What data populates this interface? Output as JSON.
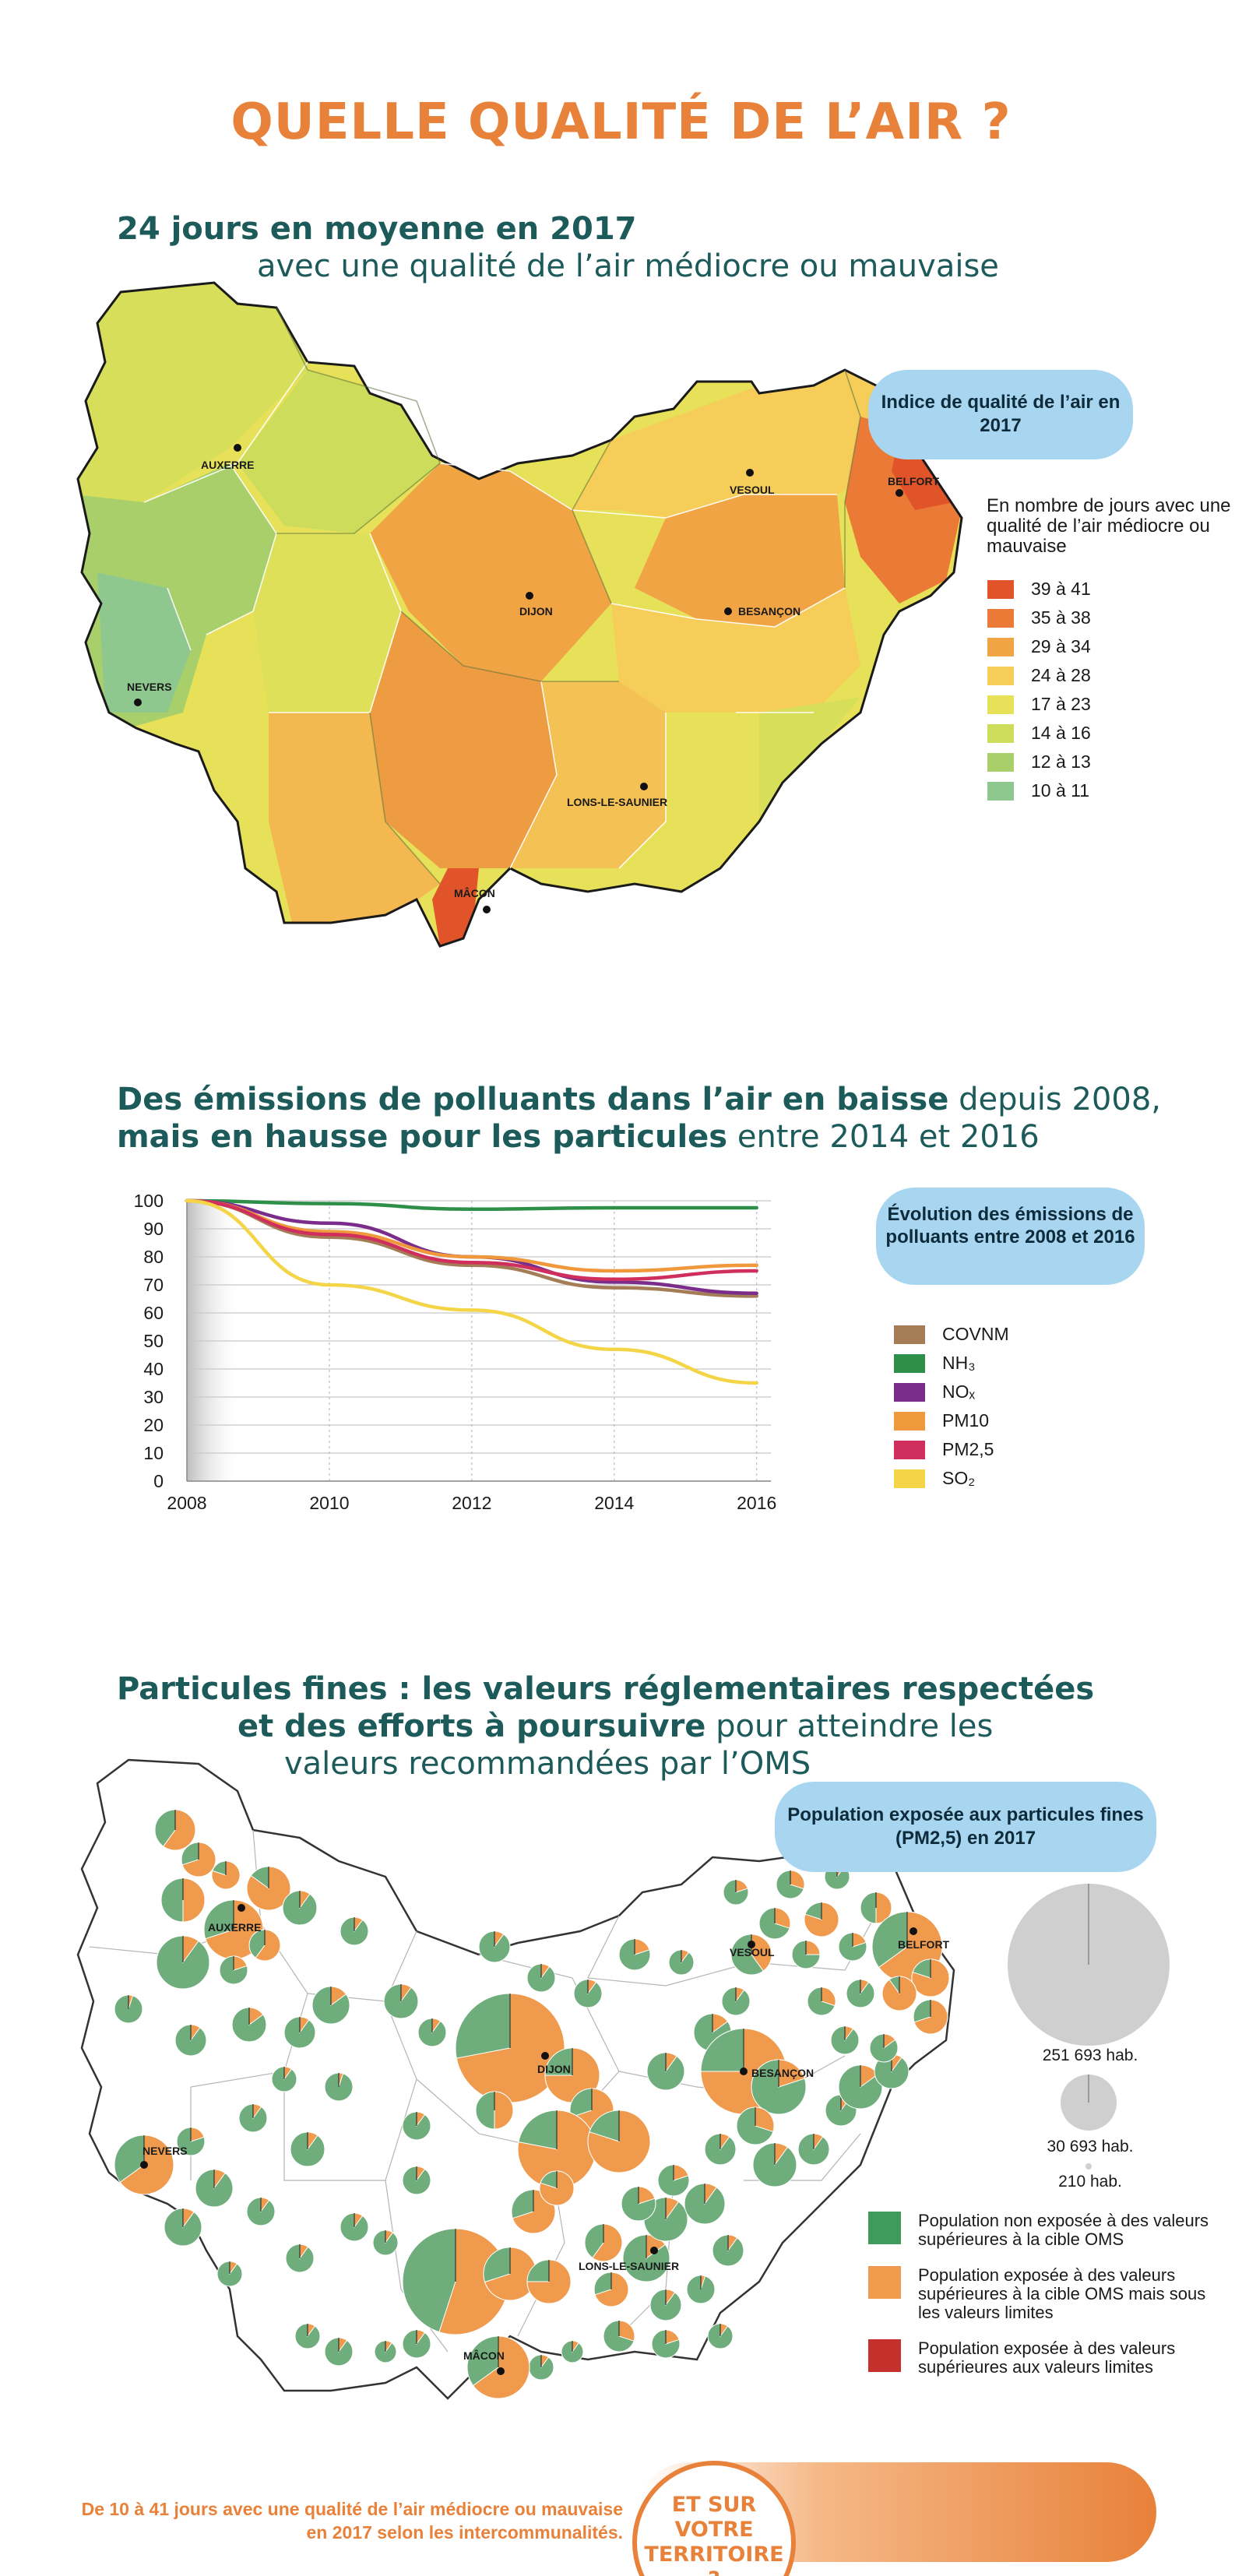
{
  "page": {
    "title": "QUELLE QUALITÉ DE L’AIR ?"
  },
  "section1": {
    "title_bold": "24 jours en moyenne en 2017",
    "title_light": "avec une qualité de l’air médiocre ou mauvaise",
    "bubble": "Indice de qualité de l’air en 2017",
    "legend_note": "En nombre de jours avec une qualité de l’air médiocre ou mauvaise",
    "legend": [
      {
        "label": "39 à 41",
        "color": "#e1542a"
      },
      {
        "label": "35 à 38",
        "color": "#ea7a35"
      },
      {
        "label": "29 à 34",
        "color": "#f0a444"
      },
      {
        "label": "24 à 28",
        "color": "#f6cd58"
      },
      {
        "label": "17 à 23",
        "color": "#e6e158"
      },
      {
        "label": "14 à 16",
        "color": "#cddc5a"
      },
      {
        "label": "12 à 13",
        "color": "#a9cf6b"
      },
      {
        "label": "10 à 11",
        "color": "#8ec88e"
      }
    ],
    "cities": [
      "AUXERRE",
      "VESOUL",
      "BELFORT",
      "DIJON",
      "BESANÇON",
      "NEVERS",
      "LONS-LE-SAUNIER",
      "MÂCON"
    ]
  },
  "section2": {
    "title_line1_bold": "Des émissions de polluants dans l’air en baisse",
    "title_line1_light": "depuis 2008,",
    "title_line2_bold": "mais en hausse pour les particules",
    "title_line2_light": "entre 2014 et 2016",
    "bubble": "Évolution des émissions de polluants entre 2008 et 2016",
    "chart_data": {
      "type": "line",
      "x": [
        2008,
        2010,
        2012,
        2014,
        2016
      ],
      "x_ticks": [
        "2008",
        "2010",
        "2012",
        "2014",
        "2016"
      ],
      "y_ticks": [
        "100",
        "90",
        "80",
        "70",
        "60",
        "50",
        "40",
        "30",
        "20",
        "10",
        "0"
      ],
      "ylim": [
        0,
        100
      ],
      "xlim": [
        2008,
        2016.2
      ],
      "series": [
        {
          "name": "COVNM",
          "color": "#a47c55",
          "points": [
            [
              2008,
              100
            ],
            [
              2010,
              87
            ],
            [
              2012,
              77
            ],
            [
              2014,
              69
            ],
            [
              2016,
              66
            ]
          ]
        },
        {
          "name": "NH₃",
          "color": "#2e8f48",
          "points": [
            [
              2008,
              100
            ],
            [
              2010,
              99
            ],
            [
              2012,
              97
            ],
            [
              2014,
              97.5
            ],
            [
              2016,
              97.5
            ]
          ]
        },
        {
          "name": "NOₓ",
          "color": "#7b2d8b",
          "points": [
            [
              2008,
              100
            ],
            [
              2010,
              92
            ],
            [
              2012,
              80
            ],
            [
              2014,
              71
            ],
            [
              2016,
              67
            ]
          ]
        },
        {
          "name": "PM10",
          "color": "#f0983c",
          "points": [
            [
              2008,
              100
            ],
            [
              2010,
              89
            ],
            [
              2012,
              80
            ],
            [
              2014,
              75
            ],
            [
              2016,
              77
            ]
          ]
        },
        {
          "name": "PM2,5",
          "color": "#d02f5e",
          "points": [
            [
              2008,
              100
            ],
            [
              2010,
              88
            ],
            [
              2012,
              78
            ],
            [
              2014,
              72
            ],
            [
              2016,
              75
            ]
          ]
        },
        {
          "name": "SO₂",
          "color": "#f5d548",
          "points": [
            [
              2008,
              100
            ],
            [
              2010,
              70
            ],
            [
              2012,
              61
            ],
            [
              2014,
              47
            ],
            [
              2016,
              35
            ]
          ]
        }
      ]
    }
  },
  "section3": {
    "title_line1_bold": "Particules fines : les valeurs réglementaires respectées",
    "title_line2_bold": "et des efforts à poursuivre",
    "title_line2_light": "pour atteindre les",
    "title_line3_light": "valeurs recommandées par l’OMS",
    "bubble": "Population exposée aux particules fines (PM2,5) en 2017",
    "sizes": [
      {
        "label": "251 693 hab."
      },
      {
        "label": "30 693 hab."
      },
      {
        "label": "210 hab."
      }
    ],
    "legend": [
      {
        "label": "Population non exposée à des valeurs supérieures à la cible OMS",
        "color": "#3f9b5b"
      },
      {
        "label": "Population exposée à des valeurs supérieures à la cible OMS mais sous les valeurs limites",
        "color": "#ef9a4c"
      },
      {
        "label": "Population exposée à des valeurs supérieures aux valeurs limites",
        "color": "#c4312c"
      }
    ],
    "colors": {
      "green": "#6fae7c",
      "orange": "#ef9a4c",
      "grey": "#cfcfcf"
    },
    "cities": [
      "AUXERRE",
      "VESOUL",
      "BELFORT",
      "DIJON",
      "BESANÇON",
      "NEVERS",
      "LONS-LE-SAUNIER",
      "MÂCON"
    ]
  },
  "footer": {
    "text_line1": "De 10 à 41 jours avec une qualité de l’air médiocre ou mauvaise",
    "text_line2": "en 2017 selon les intercommunalités.",
    "cta_line1": "ET SUR VOTRE",
    "cta_line2": "TERRITOIRE ?"
  }
}
